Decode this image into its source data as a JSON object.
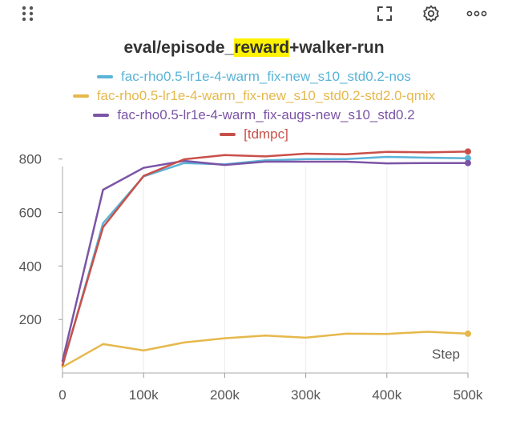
{
  "toolbar": {
    "drag_icon": "drag-handle-icon",
    "expand_icon": "expand-icon",
    "settings_icon": "gear-icon",
    "more_icon": "more-options-icon"
  },
  "title": {
    "prefix": "eval/episode_",
    "highlight": "reward",
    "suffix": "+walker-run"
  },
  "chart_data": {
    "type": "line",
    "title": "eval/episode_reward+walker-run",
    "xlabel": "Step",
    "ylabel": "",
    "xlim": [
      0,
      500000
    ],
    "ylim": [
      0,
      850
    ],
    "xticks": [
      0,
      100000,
      200000,
      300000,
      400000,
      500000
    ],
    "xtick_labels": [
      "0",
      "100k",
      "200k",
      "300k",
      "400k",
      "500k"
    ],
    "yticks": [
      200,
      400,
      600,
      800
    ],
    "ytick_labels": [
      "200",
      "400",
      "600",
      "800"
    ],
    "grid": "x-vertical",
    "legend_position": "top",
    "series": [
      {
        "name": "fac-rho0.5-lr1e-4-warm_fix-new_s10_std0.2-nos",
        "color": "#5ab4d8",
        "x": [
          0,
          50000,
          100000,
          150000,
          200000,
          250000,
          300000,
          350000,
          400000,
          450000,
          500000
        ],
        "y": [
          25,
          560,
          735,
          785,
          780,
          795,
          800,
          800,
          808,
          805,
          803
        ]
      },
      {
        "name": "fac-rho0.5-lr1e-4-warm_fix-new_s10_std0.2-std2.0-qmix",
        "color": "#e6b84c",
        "x": [
          0,
          50000,
          100000,
          150000,
          200000,
          250000,
          300000,
          350000,
          400000,
          450000,
          500000
        ],
        "y": [
          22,
          108,
          84,
          114,
          130,
          140,
          132,
          147,
          146,
          154,
          147
        ]
      },
      {
        "name": "fac-rho0.5-lr1e-4-warm_fix-augs-new_s10_std0.2",
        "color": "#7b54a6",
        "x": [
          0,
          50000,
          100000,
          150000,
          200000,
          250000,
          300000,
          350000,
          400000,
          450000,
          500000
        ],
        "y": [
          45,
          685,
          767,
          793,
          778,
          790,
          790,
          790,
          784,
          785,
          785
        ]
      },
      {
        "name": "[tdmpc]",
        "color": "#c9504a",
        "x": [
          0,
          50000,
          100000,
          150000,
          200000,
          250000,
          300000,
          350000,
          400000,
          450000,
          500000
        ],
        "y": [
          30,
          545,
          737,
          799,
          815,
          810,
          820,
          818,
          827,
          825,
          828
        ]
      }
    ]
  }
}
